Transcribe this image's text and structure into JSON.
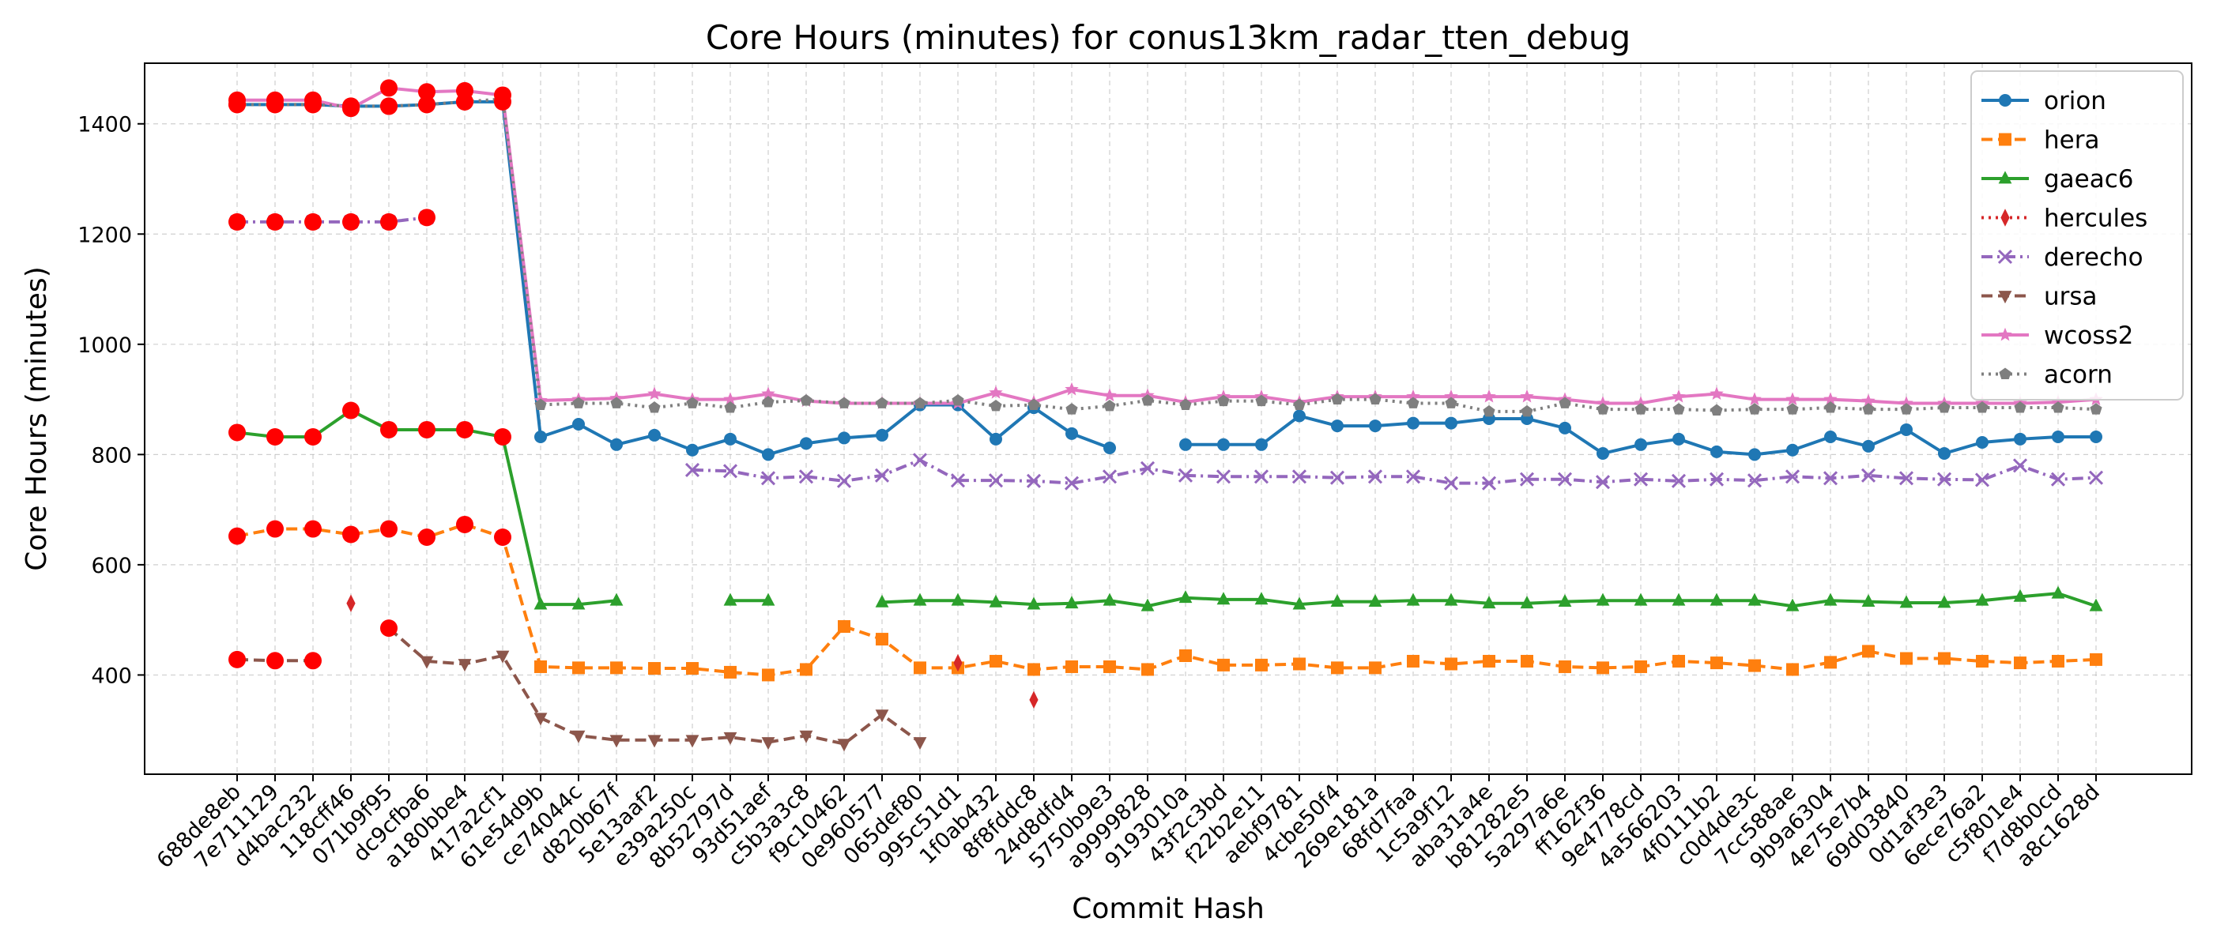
{
  "chart_data": {
    "type": "line",
    "title": "Core Hours (minutes) for conus13km_radar_tten_debug",
    "xlabel": "Commit Hash",
    "ylabel": "Core Hours (minutes)",
    "ylim": [
      220,
      1510
    ],
    "yticks": [
      400,
      600,
      800,
      1000,
      1200,
      1400
    ],
    "grid": true,
    "legend_position": "top-right",
    "categories": [
      "688de8eb",
      "7e711129",
      "d4bac232",
      "118cff46",
      "071b9f95",
      "dc9cfba6",
      "a180bbe4",
      "417a2cf1",
      "61e54d9b",
      "ce74044c",
      "d820b67f",
      "5e13aaf2",
      "e39a250c",
      "8b52797d",
      "93d51aef",
      "c5b3a3c8",
      "f9c10462",
      "0e960577",
      "065def80",
      "995c51d1",
      "1f0ab432",
      "8f8fddc8",
      "24d8dfd4",
      "5750b9e3",
      "a9999828",
      "9193010a",
      "43f2c3bd",
      "f22b2e11",
      "aebf9781",
      "4cbe50f4",
      "269e181a",
      "68fd7faa",
      "1c5a9f12",
      "aba31a4e",
      "b81282e5",
      "5a297a6e",
      "ff162f36",
      "9e4778cd",
      "4a566203",
      "4f0111b2",
      "c0d4de3c",
      "7cc588ae",
      "9b9a6304",
      "4e75e7b4",
      "69d03840",
      "0d1af3e3",
      "6ece76a2",
      "c5f801e4",
      "f7d8b0cd",
      "a8c1628d"
    ],
    "series": [
      {
        "name": "orion",
        "color": "#1f77b4",
        "marker": "circle",
        "dash": "solid",
        "values": [
          1435,
          1435,
          1435,
          1432,
          1432,
          1435,
          1440,
          1440,
          832,
          855,
          818,
          835,
          808,
          828,
          800,
          820,
          830,
          835,
          890,
          890,
          828,
          885,
          838,
          812,
          null,
          818,
          818,
          818,
          870,
          852,
          852,
          857,
          857,
          865,
          865,
          848,
          802,
          818,
          828,
          805,
          800,
          808,
          832,
          815,
          845,
          802,
          822,
          828,
          832,
          832
        ]
      },
      {
        "name": "hera",
        "color": "#ff7f0e",
        "marker": "square",
        "dash": "dashed",
        "values": [
          652,
          665,
          665,
          655,
          665,
          650,
          673,
          650,
          415,
          413,
          413,
          412,
          412,
          405,
          400,
          410,
          488,
          465,
          413,
          413,
          425,
          410,
          415,
          415,
          410,
          435,
          418,
          418,
          420,
          413,
          413,
          425,
          420,
          425,
          425,
          415,
          413,
          415,
          425,
          422,
          417,
          410,
          423,
          443,
          430,
          430,
          425,
          422,
          425,
          428
        ]
      },
      {
        "name": "gaeac6",
        "color": "#2ca02c",
        "marker": "triangle",
        "dash": "solid",
        "values": [
          840,
          832,
          832,
          880,
          845,
          845,
          845,
          832,
          528,
          528,
          535,
          null,
          null,
          535,
          535,
          null,
          null,
          532,
          535,
          535,
          532,
          528,
          530,
          535,
          525,
          540,
          537,
          537,
          528,
          533,
          533,
          535,
          535,
          530,
          530,
          533,
          535,
          535,
          535,
          535,
          535,
          525,
          535,
          533,
          531,
          531,
          535,
          542,
          548,
          525
        ]
      },
      {
        "name": "hercules",
        "color": "#d62728",
        "marker": "diamond",
        "dash": "dotted",
        "values": [
          null,
          null,
          null,
          530,
          null,
          null,
          null,
          null,
          null,
          null,
          null,
          null,
          null,
          null,
          null,
          null,
          null,
          null,
          null,
          422,
          null,
          355,
          null,
          null,
          null,
          null,
          null,
          null,
          null,
          null,
          null,
          null,
          null,
          null,
          null,
          null,
          null,
          null,
          null,
          null,
          null,
          null,
          null,
          null,
          null,
          null,
          null,
          null,
          null,
          null
        ]
      },
      {
        "name": "derecho",
        "color": "#9467bd",
        "marker": "x",
        "dash": "dashdot",
        "values": [
          1222,
          1222,
          1222,
          1222,
          1222,
          1230,
          null,
          null,
          null,
          null,
          null,
          null,
          772,
          770,
          757,
          760,
          752,
          762,
          790,
          753,
          753,
          752,
          748,
          760,
          775,
          762,
          760,
          760,
          760,
          758,
          760,
          760,
          748,
          748,
          755,
          755,
          750,
          755,
          752,
          755,
          753,
          760,
          757,
          762,
          757,
          755,
          754,
          780,
          755,
          758
        ]
      },
      {
        "name": "ursa",
        "color": "#8c564b",
        "marker": "triangle-down",
        "dash": "dashed",
        "values": [
          428,
          426,
          426,
          null,
          485,
          425,
          420,
          435,
          322,
          290,
          282,
          282,
          282,
          287,
          278,
          290,
          275,
          328,
          278,
          null,
          null,
          null,
          null,
          null,
          null,
          null,
          null,
          null,
          null,
          null,
          null,
          null,
          null,
          null,
          null,
          null,
          null,
          null,
          null,
          null,
          null,
          null,
          null,
          null,
          null,
          null,
          null,
          null,
          null,
          null
        ]
      },
      {
        "name": "wcoss2",
        "color": "#e377c2",
        "marker": "star",
        "dash": "solid",
        "values": [
          1443,
          1443,
          1443,
          1428,
          1465,
          1458,
          1460,
          1452,
          898,
          900,
          902,
          910,
          900,
          900,
          910,
          897,
          893,
          893,
          893,
          893,
          912,
          895,
          918,
          907,
          907,
          895,
          905,
          905,
          895,
          905,
          905,
          905,
          905,
          905,
          905,
          900,
          893,
          893,
          905,
          910,
          900,
          900,
          900,
          897,
          893,
          893,
          893,
          893,
          895,
          900
        ]
      },
      {
        "name": "acorn",
        "color": "#7f7f7f",
        "marker": "pentagon",
        "dash": "dotted",
        "values": [
          1435,
          1435,
          1435,
          1432,
          1432,
          1435,
          1440,
          1445,
          890,
          893,
          893,
          885,
          893,
          885,
          895,
          898,
          893,
          893,
          893,
          898,
          888,
          890,
          882,
          888,
          898,
          890,
          897,
          897,
          890,
          900,
          900,
          893,
          893,
          878,
          878,
          893,
          882,
          882,
          882,
          880,
          882,
          882,
          885,
          882,
          882,
          885,
          885,
          885,
          885,
          882
        ]
      }
    ],
    "highlight_overlays": [
      {
        "series": "orion",
        "count": 8
      },
      {
        "series": "hera",
        "count": 8
      },
      {
        "series": "gaeac6",
        "count": 8
      },
      {
        "series": "derecho",
        "count": 6
      },
      {
        "series": "ursa",
        "count": 5
      },
      {
        "series": "wcoss2",
        "count": 8
      },
      {
        "series": "acorn",
        "count": 7
      }
    ],
    "highlight_color": "#ff0000"
  }
}
